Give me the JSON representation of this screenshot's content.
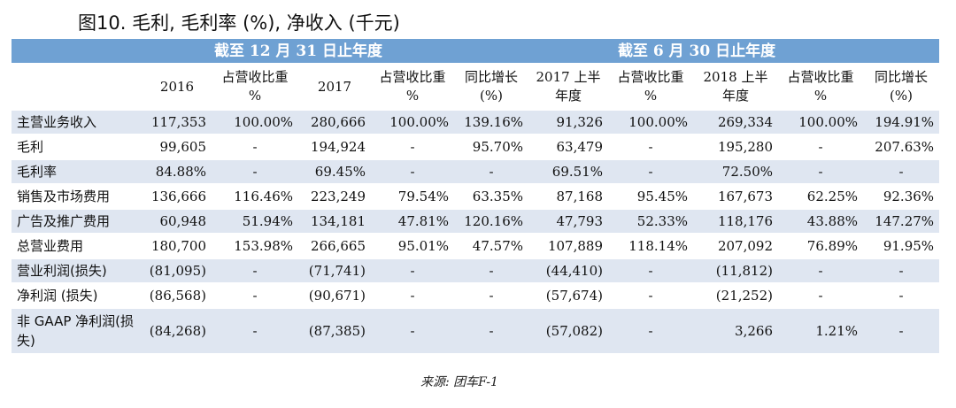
{
  "title": "图10. 毛利, 毛利率 (%), 净收入 (千元)",
  "group_headers": [
    "截至 12 月 31 日止年度",
    "截至 6 月 30 日止年度"
  ],
  "columns": [
    "2016",
    "占营收比重 %",
    "2017",
    "占营收比重 %",
    "同比增长(%)",
    "2017 上半年度",
    "占营收比重 %",
    "2018 上半年度",
    "占营收比重 %",
    "同比增长(%)"
  ],
  "rows": [
    {
      "label": "主营业务收入",
      "cells": [
        "117,353",
        "100.00%",
        "280,666",
        "100.00%",
        "139.16%",
        "91,326",
        "100.00%",
        "269,334",
        "100.00%",
        "194.91%"
      ]
    },
    {
      "label": "毛利",
      "cells": [
        "99,605",
        "-",
        "194,924",
        "-",
        "95.70%",
        "63,479",
        "-",
        "195,280",
        "-",
        "207.63%"
      ]
    },
    {
      "label": "毛利率",
      "cells": [
        "84.88%",
        "-",
        "69.45%",
        "-",
        "-",
        "69.51%",
        "-",
        "72.50%",
        "-",
        "-"
      ]
    },
    {
      "label": "销售及市场费用",
      "cells": [
        "136,666",
        "116.46%",
        "223,249",
        "79.54%",
        "63.35%",
        "87,168",
        "95.45%",
        "167,673",
        "62.25%",
        "92.36%"
      ]
    },
    {
      "label": "广告及推广费用",
      "cells": [
        "60,948",
        "51.94%",
        "134,181",
        "47.81%",
        "120.16%",
        "47,793",
        "52.33%",
        "118,176",
        "43.88%",
        "147.27%"
      ]
    },
    {
      "label": "总营业费用",
      "cells": [
        "180,700",
        "153.98%",
        "266,665",
        "95.01%",
        "47.57%",
        "107,889",
        "118.14%",
        "207,092",
        "76.89%",
        "91.95%"
      ]
    },
    {
      "label": "营业利润(损失)",
      "cells": [
        "(81,095)",
        "-",
        "(71,741)",
        "-",
        "-",
        "(44,410)",
        "-",
        "(11,812)",
        "-",
        "-"
      ]
    },
    {
      "label": "净利润 (损失)",
      "cells": [
        "(86,568)",
        "-",
        "(90,671)",
        "-",
        "-",
        "(57,674)",
        "-",
        "(21,252)",
        "-",
        "-"
      ]
    },
    {
      "label": "非 GAAP 净利润(损失)",
      "cells": [
        "(84,268)",
        "-",
        "(87,385)",
        "-",
        "-",
        "(57,082)",
        "-",
        "3,266",
        "1.21%",
        "-"
      ]
    }
  ],
  "source": "来源: 团车F-1",
  "colors": {
    "header_band": "#6fa1d3",
    "row_shade": "#dfe6f1"
  }
}
